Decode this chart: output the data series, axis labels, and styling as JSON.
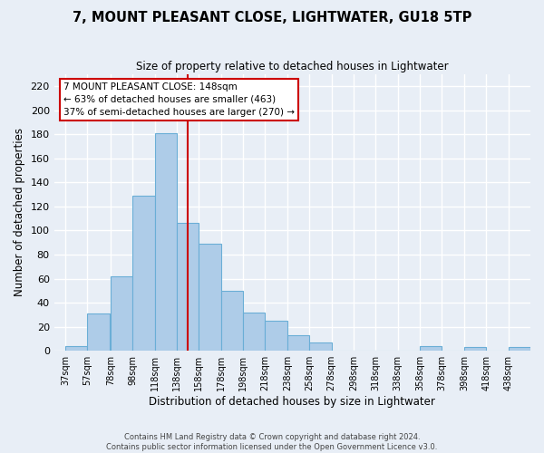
{
  "title": "7, MOUNT PLEASANT CLOSE, LIGHTWATER, GU18 5TP",
  "subtitle": "Size of property relative to detached houses in Lightwater",
  "xlabel": "Distribution of detached houses by size in Lightwater",
  "ylabel": "Number of detached properties",
  "bar_color": "#aecce8",
  "bar_edge_color": "#6aaed6",
  "reference_line_x": 148,
  "reference_line_color": "#cc0000",
  "categories": [
    "37sqm",
    "57sqm",
    "78sqm",
    "98sqm",
    "118sqm",
    "138sqm",
    "158sqm",
    "178sqm",
    "198sqm",
    "218sqm",
    "238sqm",
    "258sqm",
    "278sqm",
    "298sqm",
    "318sqm",
    "338sqm",
    "358sqm",
    "378sqm",
    "398sqm",
    "418sqm",
    "438sqm"
  ],
  "bin_starts": [
    37,
    57,
    78,
    98,
    118,
    138,
    158,
    178,
    198,
    218,
    238,
    258,
    278,
    298,
    318,
    338,
    358,
    378,
    398,
    418,
    438
  ],
  "bin_width": 20,
  "values": [
    4,
    31,
    62,
    129,
    181,
    106,
    89,
    50,
    32,
    25,
    13,
    7,
    0,
    0,
    0,
    0,
    4,
    0,
    3,
    0,
    3
  ],
  "ylim": [
    0,
    230
  ],
  "yticks": [
    0,
    20,
    40,
    60,
    80,
    100,
    120,
    140,
    160,
    180,
    200,
    220
  ],
  "xlim": [
    27,
    458
  ],
  "annotation_title": "7 MOUNT PLEASANT CLOSE: 148sqm",
  "annotation_line1": "← 63% of detached houses are smaller (463)",
  "annotation_line2": "37% of semi-detached houses are larger (270) →",
  "annotation_box_color": "#ffffff",
  "annotation_box_edge_color": "#cc0000",
  "footer1": "Contains HM Land Registry data © Crown copyright and database right 2024.",
  "footer2": "Contains public sector information licensed under the Open Government Licence v3.0.",
  "background_color": "#e8eef6",
  "grid_color": "#ffffff"
}
